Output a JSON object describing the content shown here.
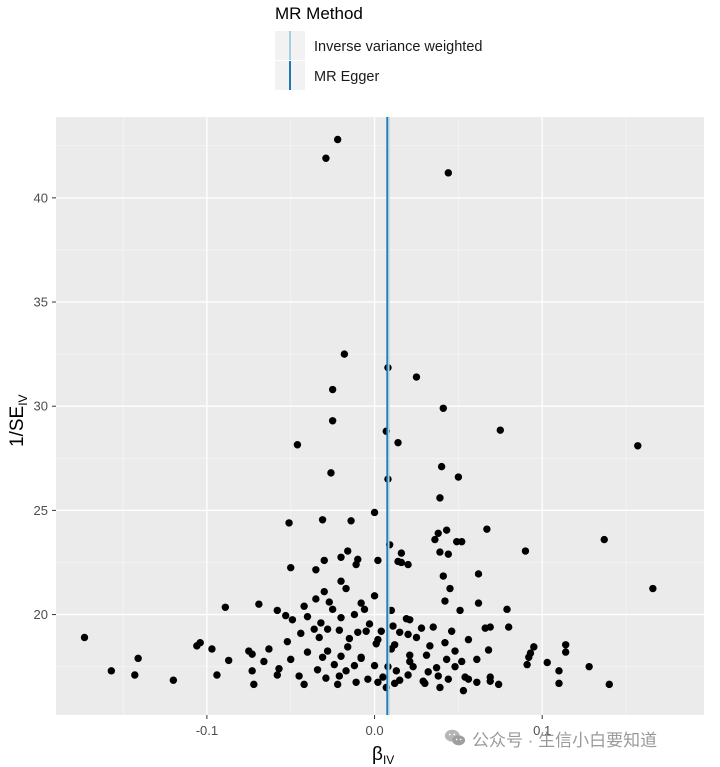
{
  "legend": {
    "title": "MR Method",
    "entries": [
      {
        "label": "Inverse variance weighted",
        "color": "#a6cee3"
      },
      {
        "label": "MR Egger",
        "color": "#1f78b4"
      }
    ]
  },
  "watermark": {
    "text": "公众号 · 生信小白要知道",
    "icon": "wechat-icon"
  },
  "chart_data": {
    "type": "scatter",
    "title": "",
    "xlabel_main": "β",
    "xlabel_sub": "IV",
    "ylabel_main": "1/SE",
    "ylabel_sub": "IV",
    "xlim": [
      -0.19,
      0.1965
    ],
    "ylim": [
      15.18,
      43.88
    ],
    "xticks": [
      -0.1,
      0.0,
      0.1
    ],
    "xtick_labels": [
      "-0.1",
      "0.0",
      "0.1"
    ],
    "yticks": [
      20,
      25,
      30,
      35,
      40
    ],
    "ytick_labels": [
      "20",
      "25",
      "30",
      "35",
      "40"
    ],
    "grid": true,
    "panel_background": "#ebebeb",
    "point_color": "#000000",
    "lines": [
      {
        "method": "Inverse variance weighted",
        "x": 0.0083,
        "color": "#a6cee3"
      },
      {
        "method": "MR Egger",
        "x": 0.0075,
        "color": "#1f78b4"
      }
    ],
    "points": [
      [
        -0.022,
        42.8
      ],
      [
        -0.029,
        41.9
      ],
      [
        0.044,
        41.2
      ],
      [
        -0.018,
        32.5
      ],
      [
        0.008,
        31.85
      ],
      [
        0.025,
        31.4
      ],
      [
        -0.025,
        30.8
      ],
      [
        0.041,
        29.9
      ],
      [
        -0.025,
        29.3
      ],
      [
        0.007,
        28.8
      ],
      [
        0.075,
        28.85
      ],
      [
        0.014,
        28.25
      ],
      [
        -0.046,
        28.15
      ],
      [
        0.157,
        28.1
      ],
      [
        0.04,
        27.1
      ],
      [
        -0.026,
        26.8
      ],
      [
        0.05,
        26.6
      ],
      [
        0.008,
        26.5
      ],
      [
        0.039,
        25.6
      ],
      [
        0.0,
        24.9
      ],
      [
        -0.031,
        24.55
      ],
      [
        -0.051,
        24.4
      ],
      [
        -0.014,
        24.5
      ],
      [
        0.067,
        24.1
      ],
      [
        0.043,
        24.05
      ],
      [
        0.038,
        23.9
      ],
      [
        0.036,
        23.6
      ],
      [
        0.137,
        23.6
      ],
      [
        0.052,
        23.5
      ],
      [
        0.049,
        23.5
      ],
      [
        0.009,
        23.35
      ],
      [
        -0.016,
        23.05
      ],
      [
        0.039,
        23.0
      ],
      [
        0.016,
        22.95
      ],
      [
        0.044,
        22.9
      ],
      [
        0.09,
        23.05
      ],
      [
        -0.02,
        22.75
      ],
      [
        -0.01,
        22.65
      ],
      [
        -0.03,
        22.6
      ],
      [
        0.016,
        22.5
      ],
      [
        0.002,
        22.6
      ],
      [
        -0.011,
        22.4
      ],
      [
        0.02,
        22.4
      ],
      [
        0.014,
        22.55
      ],
      [
        -0.05,
        22.25
      ],
      [
        -0.035,
        22.15
      ],
      [
        0.041,
        21.85
      ],
      [
        0.062,
        21.95
      ],
      [
        0.166,
        21.25
      ],
      [
        -0.02,
        21.6
      ],
      [
        -0.03,
        21.1
      ],
      [
        0.045,
        21.25
      ],
      [
        -0.017,
        21.25
      ],
      [
        0.0,
        20.9
      ],
      [
        -0.035,
        20.75
      ],
      [
        -0.027,
        20.6
      ],
      [
        -0.069,
        20.5
      ],
      [
        0.042,
        20.65
      ],
      [
        0.062,
        20.55
      ],
      [
        -0.089,
        20.35
      ],
      [
        -0.042,
        20.4
      ],
      [
        -0.008,
        20.55
      ],
      [
        -0.006,
        20.25
      ],
      [
        0.01,
        20.2
      ],
      [
        0.051,
        20.2
      ],
      [
        0.079,
        20.25
      ],
      [
        -0.058,
        20.2
      ],
      [
        -0.025,
        20.25
      ],
      [
        -0.012,
        20.0
      ],
      [
        -0.053,
        19.95
      ],
      [
        -0.04,
        19.9
      ],
      [
        -0.02,
        19.85
      ],
      [
        -0.049,
        19.75
      ],
      [
        0.019,
        19.8
      ],
      [
        0.021,
        19.75
      ],
      [
        -0.032,
        19.6
      ],
      [
        -0.003,
        19.55
      ],
      [
        0.028,
        19.35
      ],
      [
        0.035,
        19.4
      ],
      [
        0.011,
        19.45
      ],
      [
        -0.028,
        19.3
      ],
      [
        -0.036,
        19.3
      ],
      [
        -0.021,
        19.25
      ],
      [
        -0.005,
        19.2
      ],
      [
        0.004,
        19.2
      ],
      [
        0.015,
        19.15
      ],
      [
        0.066,
        19.35
      ],
      [
        0.069,
        19.4
      ],
      [
        0.08,
        19.4
      ],
      [
        -0.044,
        19.1
      ],
      [
        -0.01,
        19.15
      ],
      [
        0.02,
        19.05
      ],
      [
        0.046,
        19.2
      ],
      [
        -0.173,
        18.9
      ],
      [
        -0.033,
        18.9
      ],
      [
        -0.015,
        18.85
      ],
      [
        0.002,
        18.8
      ],
      [
        0.025,
        18.9
      ],
      [
        0.056,
        18.8
      ],
      [
        -0.052,
        18.7
      ],
      [
        0.042,
        18.65
      ],
      [
        0.001,
        18.6
      ],
      [
        -0.104,
        18.65
      ],
      [
        0.012,
        18.55
      ],
      [
        0.033,
        18.5
      ],
      [
        -0.016,
        18.45
      ],
      [
        0.095,
        18.45
      ],
      [
        0.114,
        18.55
      ],
      [
        -0.106,
        18.5
      ],
      [
        -0.063,
        18.35
      ],
      [
        0.01,
        18.35
      ],
      [
        0.068,
        18.3
      ],
      [
        -0.097,
        18.35
      ],
      [
        -0.028,
        18.25
      ],
      [
        -0.075,
        18.25
      ],
      [
        -0.04,
        18.2
      ],
      [
        0.048,
        18.25
      ],
      [
        0.093,
        18.15
      ],
      [
        0.114,
        18.2
      ],
      [
        -0.073,
        18.1
      ],
      [
        0.021,
        18.05
      ],
      [
        -0.02,
        18.0
      ],
      [
        -0.008,
        17.95
      ],
      [
        0.031,
        18.05
      ],
      [
        -0.031,
        17.95
      ],
      [
        -0.008,
        17.9
      ],
      [
        -0.05,
        17.85
      ],
      [
        0.043,
        17.85
      ],
      [
        0.092,
        17.95
      ],
      [
        -0.141,
        17.9
      ],
      [
        -0.087,
        17.8
      ],
      [
        -0.066,
        17.75
      ],
      [
        0.021,
        17.75
      ],
      [
        0.052,
        17.75
      ],
      [
        0.061,
        17.85
      ],
      [
        0.103,
        17.7
      ],
      [
        -0.024,
        17.6
      ],
      [
        -0.012,
        17.55
      ],
      [
        0.0,
        17.55
      ],
      [
        0.008,
        17.5
      ],
      [
        0.023,
        17.5
      ],
      [
        0.037,
        17.45
      ],
      [
        0.048,
        17.5
      ],
      [
        0.091,
        17.6
      ],
      [
        0.128,
        17.5
      ],
      [
        -0.057,
        17.4
      ],
      [
        -0.034,
        17.35
      ],
      [
        -0.017,
        17.3
      ],
      [
        -0.157,
        17.3
      ],
      [
        -0.073,
        17.3
      ],
      [
        0.013,
        17.3
      ],
      [
        0.032,
        17.25
      ],
      [
        0.11,
        17.3
      ],
      [
        -0.143,
        17.1
      ],
      [
        -0.094,
        17.1
      ],
      [
        -0.058,
        17.1
      ],
      [
        -0.045,
        17.05
      ],
      [
        -0.021,
        17.05
      ],
      [
        0.005,
        17.0
      ],
      [
        0.02,
        17.1
      ],
      [
        0.038,
        17.05
      ],
      [
        0.054,
        17.0
      ],
      [
        0.069,
        17.0
      ],
      [
        -0.12,
        16.85
      ],
      [
        -0.029,
        16.95
      ],
      [
        -0.004,
        16.9
      ],
      [
        0.015,
        16.85
      ],
      [
        0.029,
        16.8
      ],
      [
        0.044,
        16.9
      ],
      [
        0.056,
        16.9
      ],
      [
        0.069,
        16.8
      ],
      [
        -0.072,
        16.65
      ],
      [
        -0.042,
        16.65
      ],
      [
        -0.022,
        16.65
      ],
      [
        -0.011,
        16.75
      ],
      [
        0.002,
        16.75
      ],
      [
        0.012,
        16.7
      ],
      [
        0.03,
        16.7
      ],
      [
        0.061,
        16.75
      ],
      [
        0.074,
        16.65
      ],
      [
        0.11,
        16.7
      ],
      [
        0.14,
        16.65
      ],
      [
        0.007,
        16.5
      ],
      [
        0.039,
        16.5
      ],
      [
        0.053,
        16.35
      ]
    ]
  }
}
